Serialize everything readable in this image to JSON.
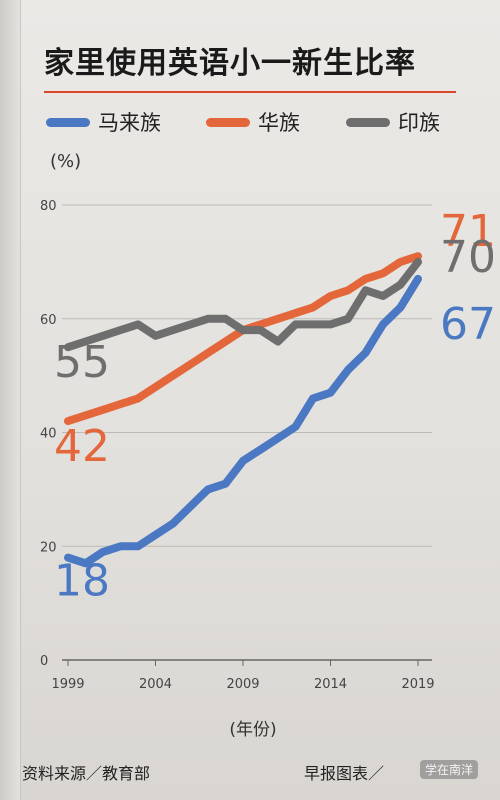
{
  "chart_data": {
    "type": "line",
    "title": "家里使用英语小一新生比率",
    "ylabel": "(%)",
    "xlabel": "(年份)",
    "ylim": [
      0,
      80
    ],
    "xlim": [
      1999,
      2019
    ],
    "yticks": [
      0,
      20,
      40,
      60,
      80
    ],
    "xticks": [
      1999,
      2004,
      2009,
      2014,
      2019
    ],
    "grid": true,
    "legend_position": "top",
    "x": [
      1999,
      2000,
      2001,
      2002,
      2003,
      2004,
      2005,
      2006,
      2007,
      2008,
      2009,
      2010,
      2011,
      2012,
      2013,
      2014,
      2015,
      2016,
      2017,
      2018,
      2019
    ],
    "series": [
      {
        "name": "马来族",
        "color": "#4a78c2",
        "values": [
          18,
          17,
          19,
          20,
          20,
          22,
          24,
          27,
          30,
          31,
          35,
          37,
          39,
          41,
          46,
          47,
          51,
          54,
          59,
          62,
          67
        ],
        "start_label": "18",
        "end_label": "67"
      },
      {
        "name": "华族",
        "color": "#e3673a",
        "values": [
          42,
          43,
          44,
          45,
          46,
          48,
          50,
          52,
          54,
          56,
          58,
          59,
          60,
          61,
          62,
          64,
          65,
          67,
          68,
          70,
          71
        ],
        "start_label": "42",
        "end_label": "71"
      },
      {
        "name": "印族",
        "color": "#6e6e6e",
        "values": [
          55,
          56,
          57,
          58,
          59,
          57,
          58,
          59,
          60,
          60,
          58,
          58,
          56,
          59,
          59,
          59,
          60,
          65,
          64,
          66,
          70
        ],
        "start_label": "55",
        "end_label": "70"
      }
    ]
  },
  "footer": {
    "source": "资料来源／教育部",
    "credit": "早报图表／",
    "watermark": "学在南洋"
  }
}
